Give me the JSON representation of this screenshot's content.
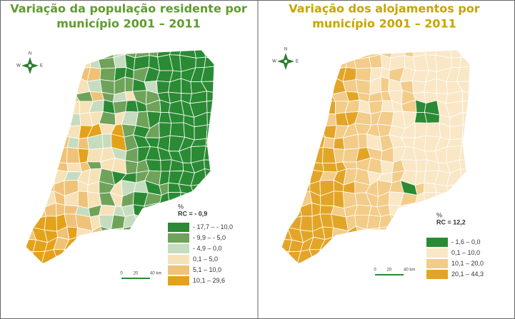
{
  "panels": [
    {
      "title_lines": [
        "Variação da população residente por",
        "município 2001 – 2011"
      ],
      "title_color": "#5e9c2c",
      "compass": [
        "N",
        "W",
        "E"
      ],
      "legend": {
        "unit": "%",
        "rc": "RC = - 0,9",
        "classes": [
          {
            "label": "- 17,7  –  - 10,0",
            "color": "#2a8b34"
          },
          {
            "label": "- 9,9  –  - 5,0",
            "color": "#6fa35a"
          },
          {
            "label": "- 4,9  –  0,0",
            "color": "#c6dcbf"
          },
          {
            "label": "0,1  –  5,0",
            "color": "#f7e2b8"
          },
          {
            "label": "5,1  –  10,0",
            "color": "#f0c277"
          },
          {
            "label": "10,1  –  29,6",
            "color": "#e3a21a"
          }
        ]
      },
      "scale": [
        "0",
        "20",
        "40 km"
      ]
    },
    {
      "title_lines": [
        "Variação dos alojamentos por",
        "município 2001 – 2011"
      ],
      "title_color": "#c9a400",
      "compass": [
        "N",
        "W",
        "E"
      ],
      "legend": {
        "unit": "%",
        "rc": "RC = 12,2",
        "classes": [
          {
            "label": "- 1,6  –  0,0",
            "color": "#2a8b34"
          },
          {
            "label": "0,1  –  10,0",
            "color": "#f9e7c6"
          },
          {
            "label": "10,1  –  20,0",
            "color": "#f2cc88"
          },
          {
            "label": "20,1  –  44,3",
            "color": "#e3a528"
          }
        ]
      },
      "scale": [
        "0",
        "20",
        "40 km"
      ]
    }
  ]
}
